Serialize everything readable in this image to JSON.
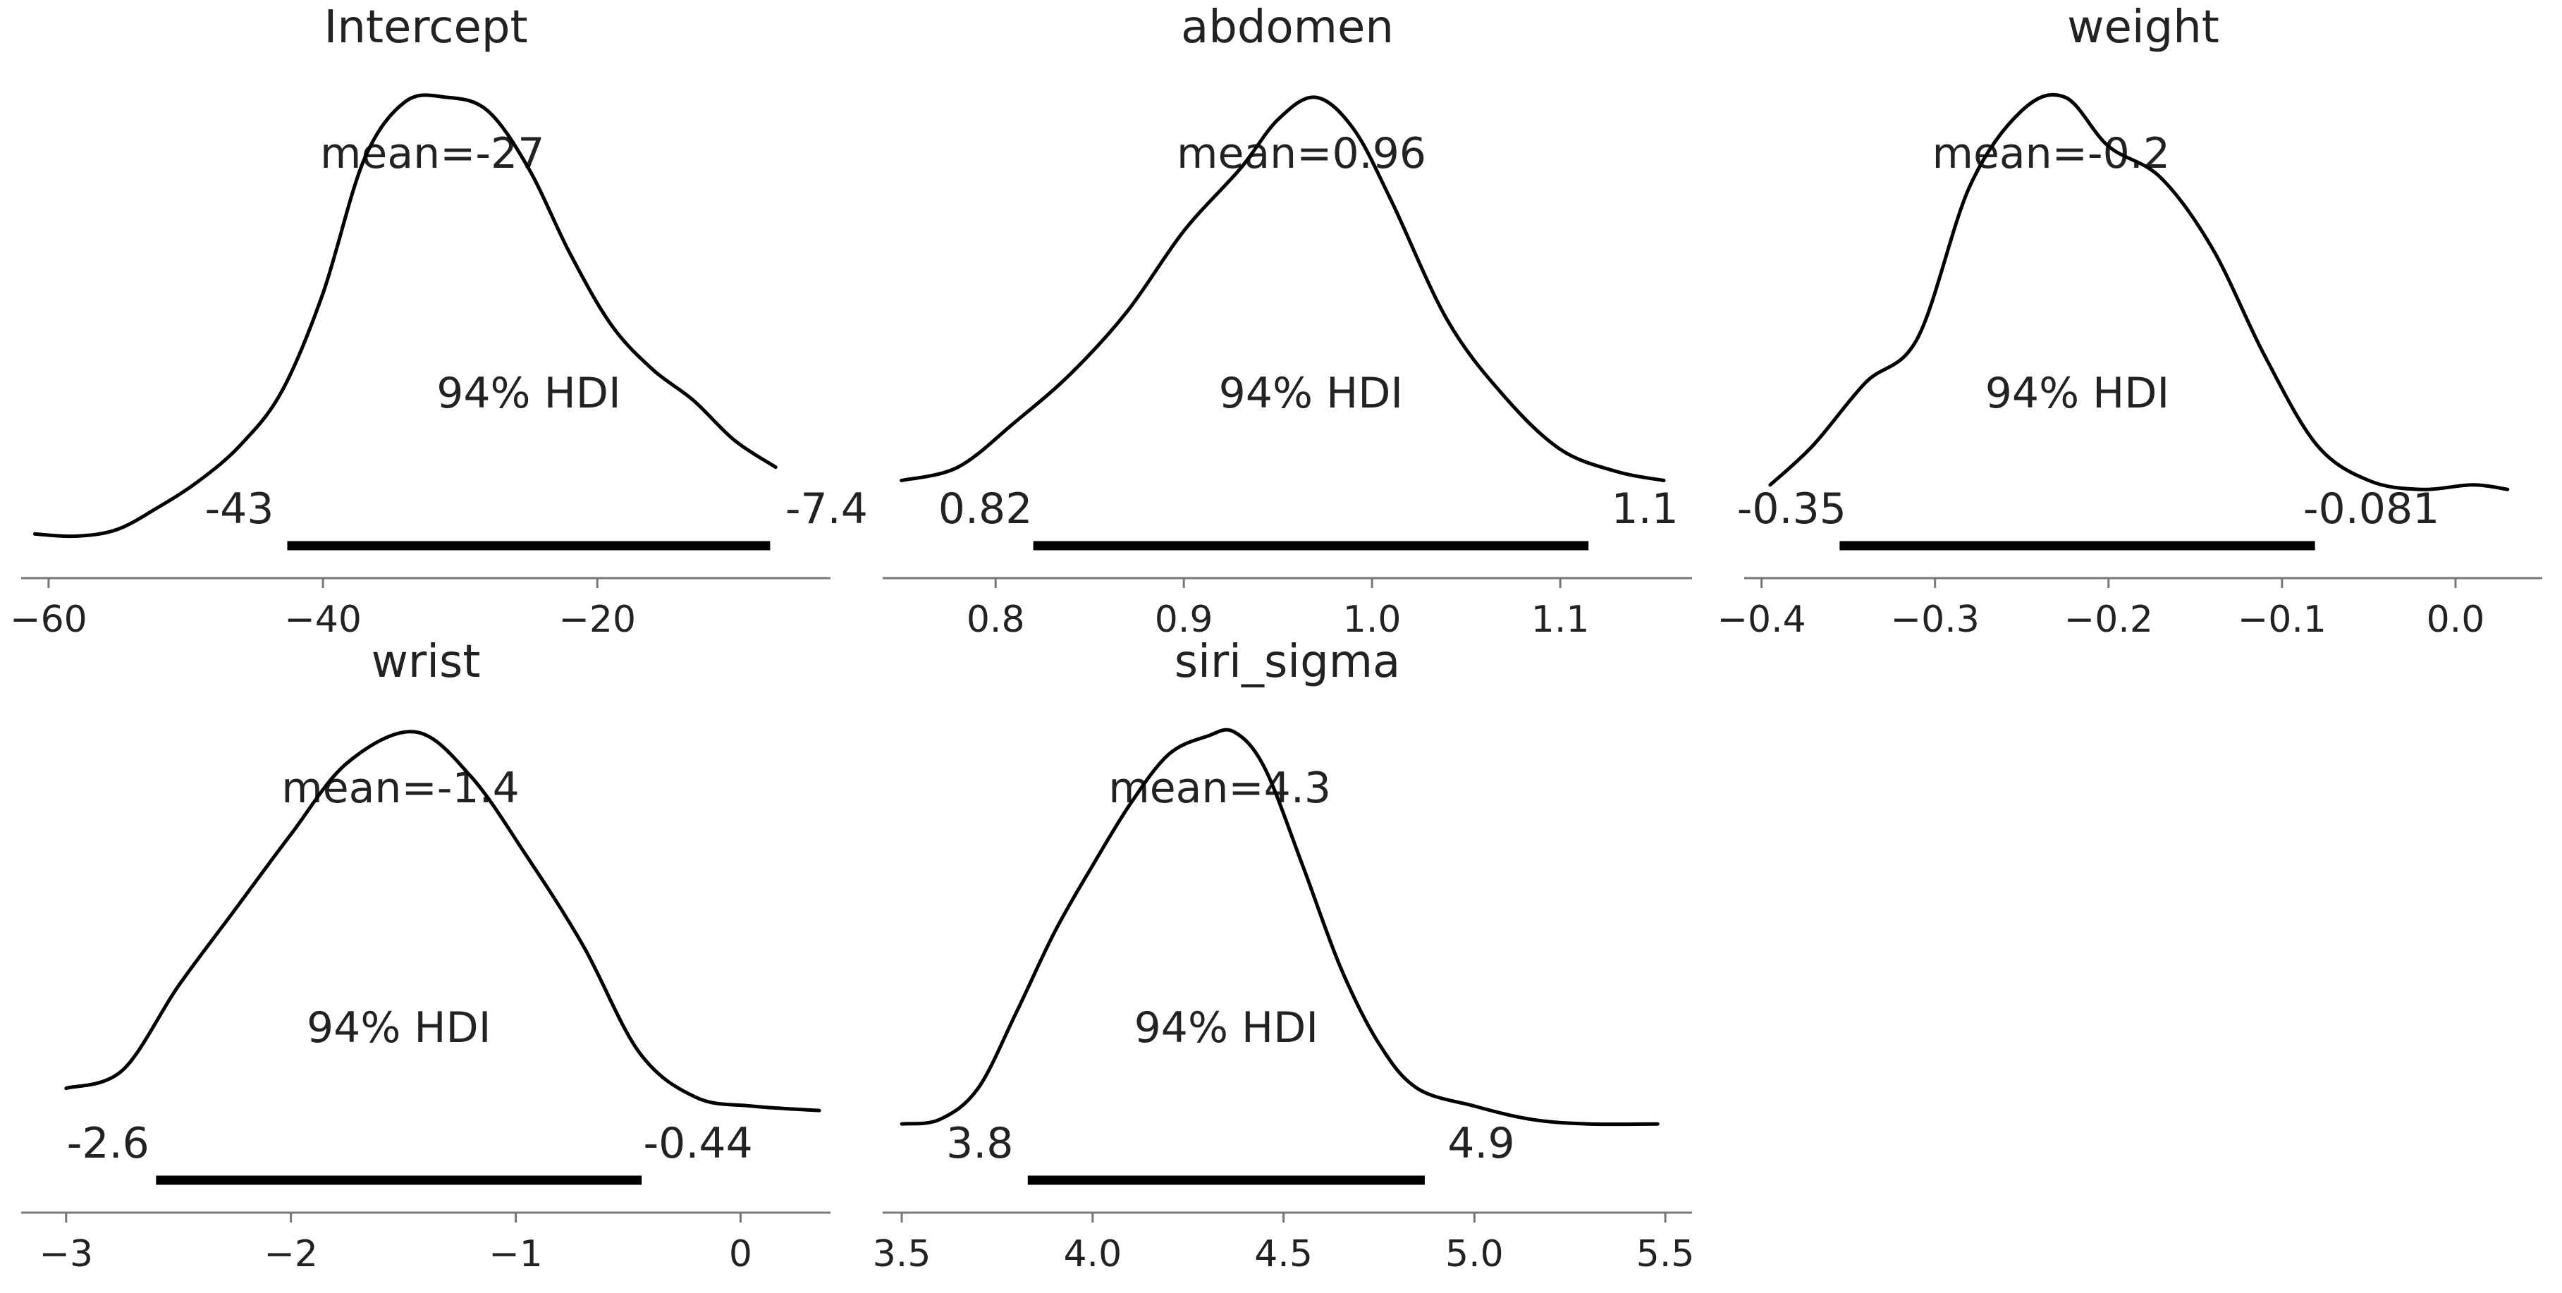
{
  "chart_data": [
    {
      "type": "area",
      "title": "Intercept",
      "xlim": [
        -62,
        -3
      ],
      "ticks": [
        -60,
        -40,
        -20
      ],
      "tick_labels": [
        "−60",
        "−40",
        "−20"
      ],
      "mean_label": "mean=-27",
      "hdi_label": "94% HDI",
      "hdi": [
        -42.6,
        -7.4
      ],
      "hdi_labels": [
        "-43",
        "-7.4"
      ],
      "density": {
        "x": [
          -61,
          -58,
          -55,
          -52,
          -49,
          -46,
          -43,
          -40,
          -37,
          -34,
          -31,
          -28,
          -25,
          -22,
          -19,
          -16,
          -13,
          -10,
          -7
        ],
        "y": [
          0.02,
          0.015,
          0.03,
          0.08,
          0.14,
          0.22,
          0.34,
          0.56,
          0.86,
          0.99,
          1.0,
          0.97,
          0.84,
          0.65,
          0.49,
          0.39,
          0.32,
          0.23,
          0.17
        ]
      }
    },
    {
      "type": "area",
      "title": "abdomen",
      "xlim": [
        0.74,
        1.17
      ],
      "ticks": [
        0.8,
        0.9,
        1.0,
        1.1
      ],
      "tick_labels": [
        "0.8",
        "0.9",
        "1.0",
        "1.1"
      ],
      "mean_label": "mean=0.96",
      "hdi_label": "94% HDI",
      "hdi": [
        0.82,
        1.115
      ],
      "hdi_labels": [
        "0.82",
        "1.1"
      ],
      "density": {
        "x": [
          0.75,
          0.78,
          0.81,
          0.84,
          0.87,
          0.9,
          0.93,
          0.95,
          0.97,
          0.99,
          1.01,
          1.04,
          1.07,
          1.1,
          1.13,
          1.155
        ],
        "y": [
          0.14,
          0.17,
          0.27,
          0.38,
          0.52,
          0.7,
          0.84,
          0.95,
          1.0,
          0.93,
          0.77,
          0.5,
          0.33,
          0.21,
          0.16,
          0.14
        ]
      }
    },
    {
      "type": "area",
      "title": "weight",
      "xlim": [
        -0.41,
        0.05
      ],
      "ticks": [
        -0.4,
        -0.3,
        -0.2,
        -0.1,
        0.0
      ],
      "tick_labels": [
        "−0.4",
        "−0.3",
        "−0.2",
        "−0.1",
        "0.0"
      ],
      "mean_label": "mean=-0.2",
      "hdi_label": "94% HDI",
      "hdi": [
        -0.355,
        -0.081
      ],
      "hdi_labels": [
        "-0.35",
        "-0.081"
      ],
      "density": {
        "x": [
          -0.395,
          -0.37,
          -0.34,
          -0.31,
          -0.28,
          -0.25,
          -0.225,
          -0.2,
          -0.17,
          -0.14,
          -0.11,
          -0.08,
          -0.05,
          -0.02,
          0.01,
          0.03
        ],
        "y": [
          0.13,
          0.22,
          0.36,
          0.46,
          0.8,
          0.97,
          1.0,
          0.89,
          0.82,
          0.66,
          0.42,
          0.22,
          0.14,
          0.12,
          0.13,
          0.12
        ]
      }
    },
    {
      "type": "area",
      "title": "wrist",
      "xlim": [
        -3.2,
        0.4
      ],
      "ticks": [
        -3,
        -2,
        -1,
        0
      ],
      "tick_labels": [
        "−3",
        "−2",
        "−1",
        "0"
      ],
      "mean_label": "mean=-1.4",
      "hdi_label": "94% HDI",
      "hdi": [
        -2.6,
        -0.44
      ],
      "hdi_labels": [
        "-2.6",
        "-0.44"
      ],
      "density": {
        "x": [
          -3.0,
          -2.75,
          -2.5,
          -2.25,
          -2.0,
          -1.75,
          -1.45,
          -1.2,
          -0.95,
          -0.7,
          -0.45,
          -0.2,
          0.05,
          0.35
        ],
        "y": [
          0.2,
          0.24,
          0.43,
          0.6,
          0.77,
          0.93,
          1.0,
          0.9,
          0.72,
          0.52,
          0.28,
          0.18,
          0.16,
          0.15
        ]
      }
    },
    {
      "type": "area",
      "title": "siri_sigma",
      "xlim": [
        3.45,
        5.57
      ],
      "ticks": [
        3.5,
        4.0,
        4.5,
        5.0,
        5.5
      ],
      "tick_labels": [
        "3.5",
        "4.0",
        "4.5",
        "5.0",
        "5.5"
      ],
      "mean_label": "mean=4.3",
      "hdi_label": "94% HDI",
      "hdi": [
        3.83,
        4.87
      ],
      "hdi_labels": [
        "3.8",
        "4.9"
      ],
      "density": {
        "x": [
          3.5,
          3.6,
          3.7,
          3.8,
          3.9,
          4.0,
          4.1,
          4.2,
          4.3,
          4.37,
          4.45,
          4.55,
          4.65,
          4.75,
          4.85,
          5.0,
          5.15,
          5.3,
          5.48
        ],
        "y": [
          0.12,
          0.13,
          0.2,
          0.37,
          0.55,
          0.7,
          0.84,
          0.95,
          0.99,
          1.0,
          0.92,
          0.7,
          0.47,
          0.3,
          0.2,
          0.16,
          0.13,
          0.12,
          0.12
        ]
      }
    }
  ]
}
